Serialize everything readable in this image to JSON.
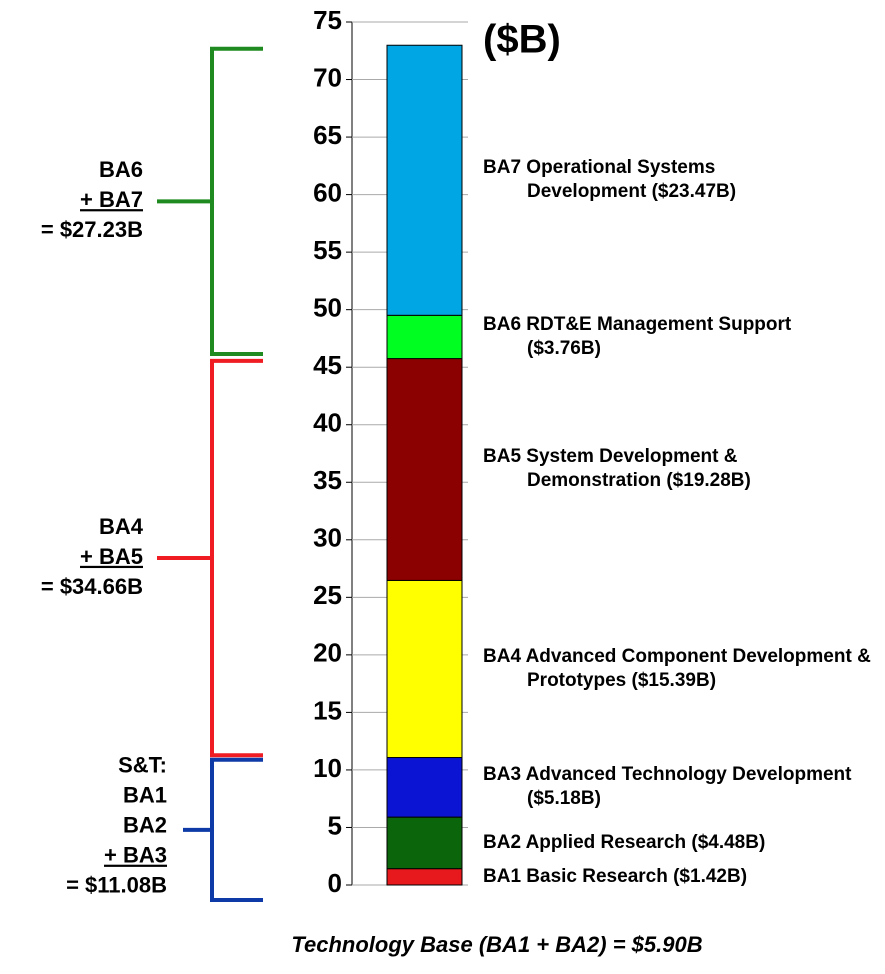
{
  "chart_data": {
    "type": "stacked_bar",
    "title": "($B)",
    "x_label": "Technology Base (BA1 + BA2) = $5.90B",
    "categories": [
      null
    ],
    "ylim": [
      0,
      75
    ],
    "yticks": [
      0,
      5,
      10,
      15,
      20,
      25,
      30,
      35,
      40,
      45,
      50,
      55,
      60,
      65,
      70,
      75
    ],
    "grid": true,
    "series": [
      {
        "name": "BA1 Basic Research",
        "color": "#e8191c",
        "values": [
          1.42
        ],
        "value_labels": [
          "($1.42B)"
        ]
      },
      {
        "name": "BA2 Applied Research",
        "color": "#0b650b",
        "values": [
          4.48
        ],
        "value_labels": [
          "($4.48B)"
        ]
      },
      {
        "name": "BA3 Advanced Technology Development",
        "color": "#0a14d2",
        "values": [
          5.18
        ],
        "value_labels": [
          "($5.18B)"
        ]
      },
      {
        "name": "BA4 Advanced Component Development & Prototypes",
        "color": "#ffff00",
        "values": [
          15.39
        ],
        "value_labels": [
          "($15.39B)"
        ]
      },
      {
        "name": "BA5 System Development & Demonstration",
        "color": "#8b0000",
        "values": [
          19.28
        ],
        "value_labels": [
          "($19.28B)"
        ]
      },
      {
        "name": "BA6 RDT&E Management Support",
        "color": "#00ff21",
        "values": [
          3.76
        ],
        "value_labels": [
          "($3.76B)"
        ]
      },
      {
        "name": "BA7 Operational Systems Development",
        "color": "#00a5e3",
        "values": [
          23.47
        ],
        "value_labels": [
          "($23.47B)"
        ]
      }
    ],
    "brackets": [
      {
        "lines": [
          "BA6",
          "+ BA7",
          "= $27.23B"
        ],
        "color": "#1f8a1f"
      },
      {
        "lines": [
          "BA4",
          "+ BA5",
          "= $34.66B"
        ],
        "color": "#ef1c24"
      },
      {
        "lines": [
          "S&T:",
          "BA1",
          "BA2",
          "+ BA3",
          "= $11.08B"
        ],
        "color": "#0d3aa6"
      }
    ]
  }
}
